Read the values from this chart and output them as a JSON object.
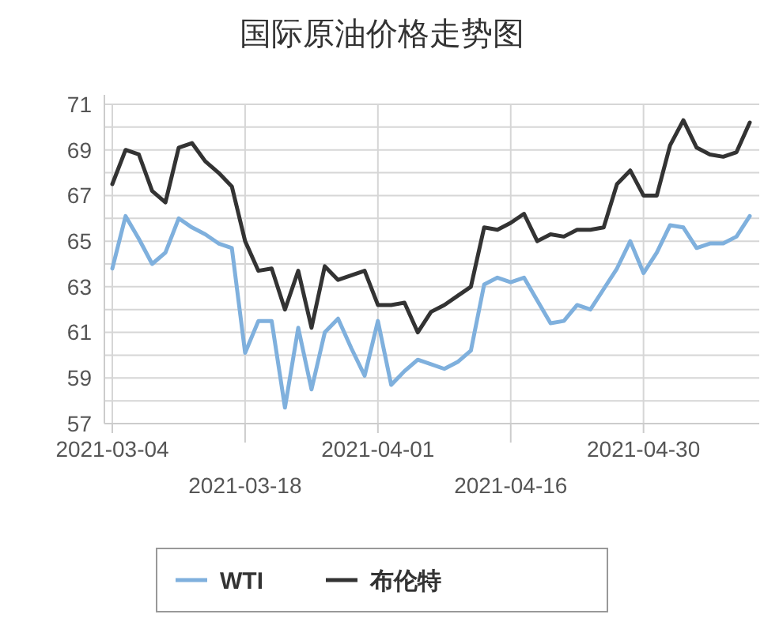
{
  "chart_data": {
    "type": "line",
    "title": "国际原油价格走势图",
    "categories": [
      "2021-03-04",
      null,
      null,
      null,
      null,
      null,
      null,
      null,
      null,
      null,
      "2021-03-18",
      null,
      null,
      null,
      null,
      null,
      null,
      null,
      null,
      null,
      "2021-04-01",
      null,
      null,
      null,
      null,
      null,
      null,
      null,
      null,
      null,
      "2021-04-16",
      null,
      null,
      null,
      null,
      null,
      null,
      null,
      null,
      null,
      "2021-04-30",
      null,
      null,
      null,
      null,
      null,
      null,
      null,
      null
    ],
    "series": [
      {
        "name": "WTI",
        "color": "#7fb0dd",
        "values": [
          63.8,
          66.1,
          65.1,
          64.0,
          64.5,
          66.0,
          65.6,
          65.3,
          64.9,
          64.7,
          60.1,
          61.5,
          61.5,
          57.7,
          61.2,
          58.5,
          61.0,
          61.6,
          60.3,
          59.1,
          61.5,
          58.7,
          59.3,
          59.8,
          59.6,
          59.4,
          59.7,
          60.2,
          63.1,
          63.4,
          63.2,
          63.4,
          62.4,
          61.4,
          61.5,
          62.2,
          62.0,
          62.9,
          63.8,
          65.0,
          63.6,
          64.5,
          65.7,
          65.6,
          64.7,
          64.9,
          64.9,
          65.2,
          66.1
        ]
      },
      {
        "name": "布伦特",
        "color": "#333333",
        "values": [
          67.5,
          69.0,
          68.8,
          67.2,
          66.7,
          69.1,
          69.3,
          68.5,
          68.0,
          67.4,
          65.0,
          63.7,
          63.8,
          62.0,
          63.7,
          61.2,
          63.9,
          63.3,
          63.5,
          63.7,
          62.2,
          62.2,
          62.3,
          61.0,
          61.9,
          62.2,
          62.6,
          63.0,
          65.6,
          65.5,
          65.8,
          66.2,
          65.0,
          65.3,
          65.2,
          65.5,
          65.5,
          65.6,
          67.5,
          68.1,
          67.0,
          67.0,
          69.2,
          70.3,
          69.1,
          68.8,
          68.7,
          68.9,
          70.2
        ]
      }
    ],
    "ylim": [
      57,
      71
    ],
    "yticks": [
      57,
      {
        "value": 58,
        "label": null
      },
      59,
      {
        "value": 60,
        "label": null
      },
      61,
      {
        "value": 62,
        "label": null
      },
      63,
      {
        "value": 64,
        "label": null
      },
      65,
      {
        "value": 66,
        "label": null
      },
      67,
      {
        "value": 68,
        "label": null
      },
      69,
      {
        "value": 70,
        "label": null
      },
      71
    ],
    "grid": true,
    "legend": "bottom",
    "marker": "none",
    "line_style": "solid"
  }
}
